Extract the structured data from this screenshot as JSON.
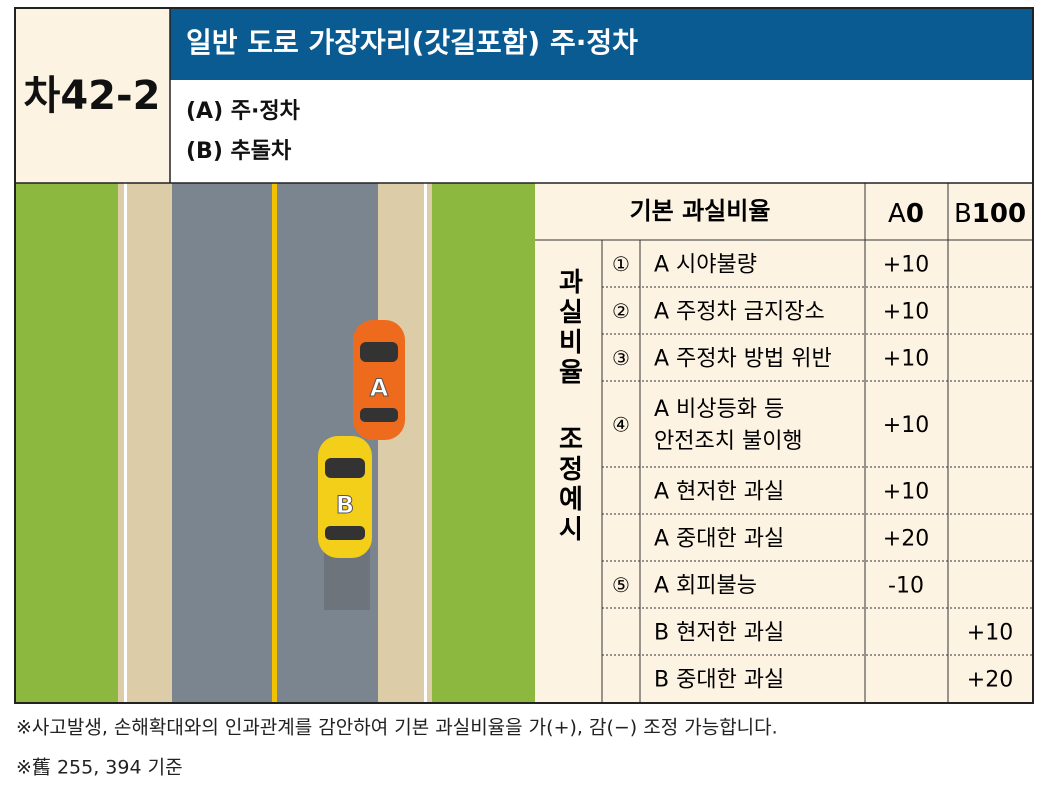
{
  "header": {
    "code": "차42-2",
    "title": "일반 도로 가장자리(갓길포함) 주·정차",
    "parties": [
      "(A) 주·정차",
      "(B) 추돌차"
    ]
  },
  "illustration": {
    "cars": [
      {
        "label": "A"
      },
      {
        "label": "B"
      }
    ]
  },
  "table": {
    "header": {
      "label": "기본 과실비율",
      "a": {
        "prefix": "A",
        "value": "0"
      },
      "b": {
        "prefix": "B",
        "value": "100"
      }
    },
    "side_label": [
      "과실비율",
      "조정예시"
    ],
    "rows": [
      {
        "no": "①",
        "item": [
          "A 시야불량"
        ],
        "a": "+10"
      },
      {
        "no": "②",
        "item": [
          "A 주정차 금지장소"
        ],
        "a": "+10"
      },
      {
        "no": "③",
        "item": [
          "A 주정차 방법 위반"
        ],
        "a": "+10"
      },
      {
        "no": "④",
        "item": [
          "A 비상등화 등",
          "안전조치 불이행"
        ],
        "a": "+10"
      },
      {
        "item": [
          "A 현저한 과실"
        ],
        "a": "+10"
      },
      {
        "item": [
          "A 중대한 과실"
        ],
        "a": "+20"
      },
      {
        "no": "⑤",
        "item": [
          "A 회피불능"
        ],
        "a": "-10"
      },
      {
        "item": [
          "B 현저한 과실"
        ],
        "b": "+10"
      },
      {
        "item": [
          "B 중대한 과실"
        ],
        "b": "+20"
      }
    ]
  },
  "notes": [
    "※사고발생, 손해확대와의 인과관계를 감안하여 기본 과실비율을 가(+), 감(−) 조정 가능합니다.",
    "※舊 255, 394 기준"
  ]
}
